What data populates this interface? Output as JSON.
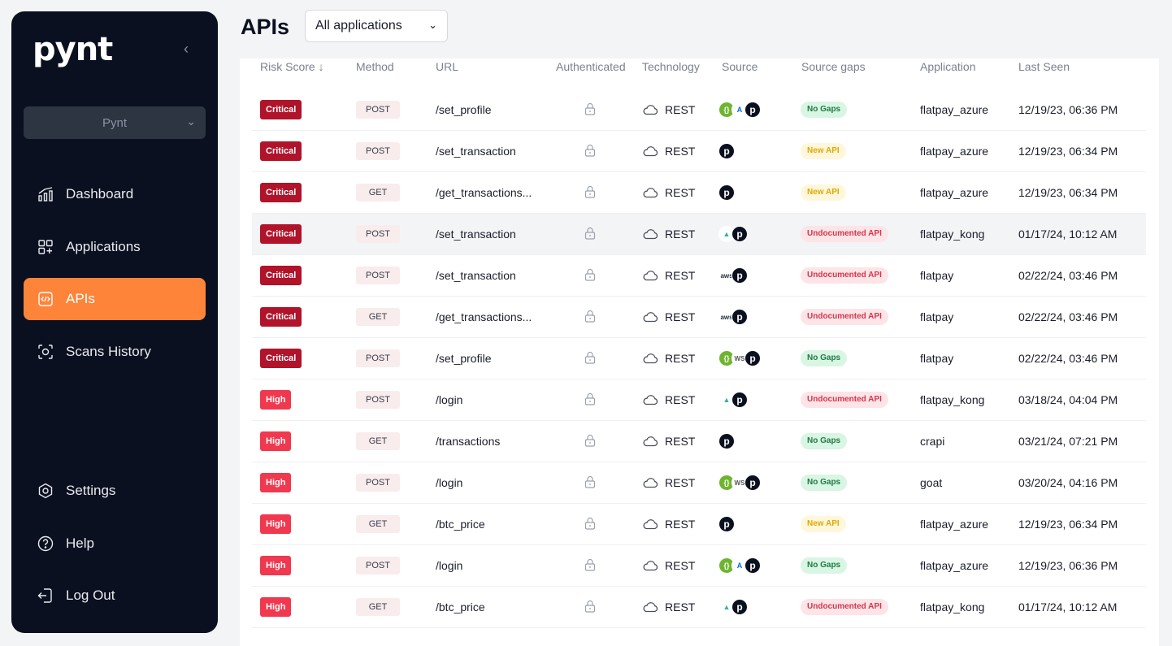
{
  "sidebar": {
    "logo": "pynt",
    "org_selector": "Pynt",
    "nav": [
      {
        "label": "Dashboard",
        "icon": "chart-icon"
      },
      {
        "label": "Applications",
        "icon": "applications-icon"
      },
      {
        "label": "APIs",
        "icon": "api-icon",
        "active": true
      },
      {
        "label": "Scans History",
        "icon": "scan-icon"
      }
    ],
    "bottom_nav": [
      {
        "label": "Settings",
        "icon": "settings-icon"
      },
      {
        "label": "Help",
        "icon": "help-icon"
      },
      {
        "label": "Log Out",
        "icon": "logout-icon"
      }
    ],
    "accent": "#fd8439"
  },
  "header": {
    "title": "APIs",
    "app_filter": "All applications"
  },
  "table": {
    "columns": [
      "Risk Score",
      "Method",
      "URL",
      "Authenticated",
      "Technology",
      "Source",
      "Source gaps",
      "Application",
      "Last Seen"
    ],
    "rows": [
      {
        "risk": "Critical",
        "method": "POST",
        "url": "/set_profile",
        "tech": "REST",
        "source": [
          "postman",
          "azure",
          "pynt"
        ],
        "gap": "No Gaps",
        "app": "flatpay_azure",
        "seen": "12/19/23, 06:36 PM"
      },
      {
        "risk": "Critical",
        "method": "POST",
        "url": "/set_transaction",
        "tech": "REST",
        "source": [
          "pynt"
        ],
        "gap": "New API",
        "app": "flatpay_azure",
        "seen": "12/19/23, 06:34 PM"
      },
      {
        "risk": "Critical",
        "method": "GET",
        "url": "/get_transactions...",
        "tech": "REST",
        "source": [
          "pynt"
        ],
        "gap": "New API",
        "app": "flatpay_azure",
        "seen": "12/19/23, 06:34 PM"
      },
      {
        "risk": "Critical",
        "method": "POST",
        "url": "/set_transaction",
        "tech": "REST",
        "source": [
          "kong",
          "pynt"
        ],
        "gap": "Undocumented API",
        "app": "flatpay_kong",
        "seen": "01/17/24, 10:12 AM",
        "highlight": true
      },
      {
        "risk": "Critical",
        "method": "POST",
        "url": "/set_transaction",
        "tech": "REST",
        "source": [
          "aws",
          "pynt"
        ],
        "gap": "Undocumented API",
        "app": "flatpay",
        "seen": "02/22/24, 03:46 PM"
      },
      {
        "risk": "Critical",
        "method": "GET",
        "url": "/get_transactions...",
        "tech": "REST",
        "source": [
          "aws",
          "pynt"
        ],
        "gap": "Undocumented API",
        "app": "flatpay",
        "seen": "02/22/24, 03:46 PM"
      },
      {
        "risk": "Critical",
        "method": "POST",
        "url": "/set_profile",
        "tech": "REST",
        "source": [
          "postman",
          "ws",
          "pynt"
        ],
        "gap": "No Gaps",
        "app": "flatpay",
        "seen": "02/22/24, 03:46 PM"
      },
      {
        "risk": "High",
        "method": "POST",
        "url": "/login",
        "tech": "REST",
        "source": [
          "kong",
          "pynt"
        ],
        "gap": "Undocumented API",
        "app": "flatpay_kong",
        "seen": "03/18/24, 04:04 PM"
      },
      {
        "risk": "High",
        "method": "GET",
        "url": "/transactions",
        "tech": "REST",
        "source": [
          "pynt"
        ],
        "gap": "No Gaps",
        "app": "crapi",
        "seen": "03/21/24, 07:21 PM"
      },
      {
        "risk": "High",
        "method": "POST",
        "url": "/login",
        "tech": "REST",
        "source": [
          "postman",
          "ws",
          "pynt"
        ],
        "gap": "No Gaps",
        "app": "goat",
        "seen": "03/20/24, 04:16 PM"
      },
      {
        "risk": "High",
        "method": "GET",
        "url": "/btc_price",
        "tech": "REST",
        "source": [
          "pynt"
        ],
        "gap": "New API",
        "app": "flatpay_azure",
        "seen": "12/19/23, 06:34 PM"
      },
      {
        "risk": "High",
        "method": "POST",
        "url": "/login",
        "tech": "REST",
        "source": [
          "postman",
          "azure",
          "pynt"
        ],
        "gap": "No Gaps",
        "app": "flatpay_azure",
        "seen": "12/19/23, 06:36 PM"
      },
      {
        "risk": "High",
        "method": "GET",
        "url": "/btc_price",
        "tech": "REST",
        "source": [
          "kong",
          "pynt"
        ],
        "gap": "Undocumented API",
        "app": "flatpay_kong",
        "seen": "01/17/24, 10:12 AM"
      }
    ],
    "colors": {
      "critical": "#b0132a",
      "high": "#f0384f",
      "no_gaps_bg": "#d9f5e3",
      "no_gaps_fg": "#1f7a45",
      "new_api_bg": "#fff7dc",
      "new_api_fg": "#e0a800",
      "undoc_bg": "#fde4e7",
      "undoc_fg": "#d4364d"
    }
  }
}
